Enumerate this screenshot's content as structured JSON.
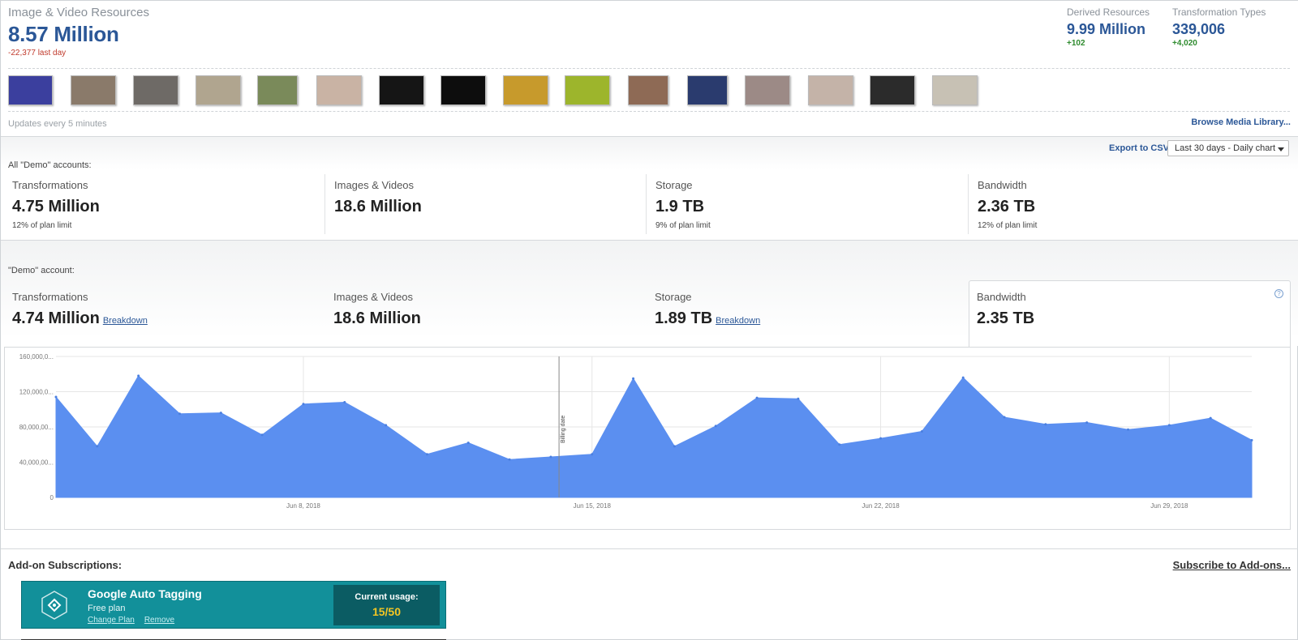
{
  "header": {
    "title": "Image & Video Resources",
    "total": "8.57 Million",
    "total_delta": "-22,377 last day",
    "derived": {
      "label": "Derived Resources",
      "value": "9.99 Million",
      "delta": "+102"
    },
    "transformation_types": {
      "label": "Transformation Types",
      "value": "339,006",
      "delta": "+4,020"
    },
    "updates_text": "Updates every 5 minutes",
    "browse_link": "Browse Media Library..."
  },
  "thumbnails": [
    {
      "name": "thumb-1",
      "color": "#3b3f9e"
    },
    {
      "name": "thumb-2",
      "color": "#8a7a6a"
    },
    {
      "name": "thumb-3",
      "color": "#6e6a66"
    },
    {
      "name": "thumb-4",
      "color": "#b0a58f"
    },
    {
      "name": "thumb-5",
      "color": "#7a8a5a"
    },
    {
      "name": "thumb-6",
      "color": "#c9b3a4"
    },
    {
      "name": "thumb-7",
      "color": "#151515"
    },
    {
      "name": "thumb-8",
      "color": "#0d0d0d"
    },
    {
      "name": "thumb-9",
      "color": "#c79a2c"
    },
    {
      "name": "thumb-10",
      "color": "#9db52c"
    },
    {
      "name": "thumb-11",
      "color": "#8e6a55"
    },
    {
      "name": "thumb-12",
      "color": "#2a3b6e"
    },
    {
      "name": "thumb-13",
      "color": "#9c8a86"
    },
    {
      "name": "thumb-14",
      "color": "#c4b3a8"
    },
    {
      "name": "thumb-15",
      "color": "#2b2b2b"
    },
    {
      "name": "thumb-16",
      "color": "#c7c1b4"
    }
  ],
  "toolbar": {
    "export": "Export to CSV",
    "range": "Last 30 days - Daily chart"
  },
  "all_accounts": {
    "label": "All \"Demo\" accounts:",
    "metrics": [
      {
        "label": "Transformations",
        "value": "4.75 Million",
        "sub": "12% of plan limit"
      },
      {
        "label": "Images & Videos",
        "value": "18.6 Million",
        "sub": ""
      },
      {
        "label": "Storage",
        "value": "1.9 TB",
        "sub": "9% of plan limit"
      },
      {
        "label": "Bandwidth",
        "value": "2.36 TB",
        "sub": "12% of plan limit"
      }
    ]
  },
  "demo_account": {
    "label": "\"Demo\" account:",
    "metrics": [
      {
        "label": "Transformations",
        "value": "4.74 Million",
        "link": "Breakdown"
      },
      {
        "label": "Images & Videos",
        "value": "18.6 Million",
        "link": ""
      },
      {
        "label": "Storage",
        "value": "1.89 TB",
        "link": "Breakdown"
      },
      {
        "label": "Bandwidth",
        "value": "2.35 TB",
        "link": ""
      }
    ],
    "help": "?"
  },
  "chart_data": {
    "type": "area",
    "color": "#5b8ff0",
    "ylim": [
      0,
      160000000
    ],
    "y_ticks": [
      {
        "v": 0,
        "label": "0"
      },
      {
        "v": 40000000,
        "label": "40,000,00..."
      },
      {
        "v": 80000000,
        "label": "80,000,00..."
      },
      {
        "v": 120000000,
        "label": "120,000,0..."
      },
      {
        "v": 160000000,
        "label": "160,000,0..."
      }
    ],
    "x_ticks": [
      {
        "i": 6,
        "label": "Jun 8, 2018"
      },
      {
        "i": 13,
        "label": "Jun 15, 2018"
      },
      {
        "i": 20,
        "label": "Jun 22, 2018"
      },
      {
        "i": 27,
        "label": "Jun 29, 2018"
      }
    ],
    "billing_marker": {
      "i": 12.2,
      "label": "Billing date"
    },
    "values": [
      114000000,
      58000000,
      138000000,
      95000000,
      96000000,
      71000000,
      106000000,
      108000000,
      82000000,
      49000000,
      62000000,
      43000000,
      46000000,
      49000000,
      135000000,
      58000000,
      81000000,
      113000000,
      112000000,
      60000000,
      67000000,
      75000000,
      136000000,
      91000000,
      83000000,
      85000000,
      77000000,
      82000000,
      90000000,
      65000000
    ]
  },
  "addons": {
    "title": "Add-on Subscriptions:",
    "subscribe": "Subscribe to Add-ons...",
    "card": {
      "name": "Google Auto Tagging",
      "plan": "Free plan",
      "change": "Change Plan",
      "remove": "Remove",
      "usage_label": "Current usage:",
      "usage_value": "15/50"
    }
  }
}
